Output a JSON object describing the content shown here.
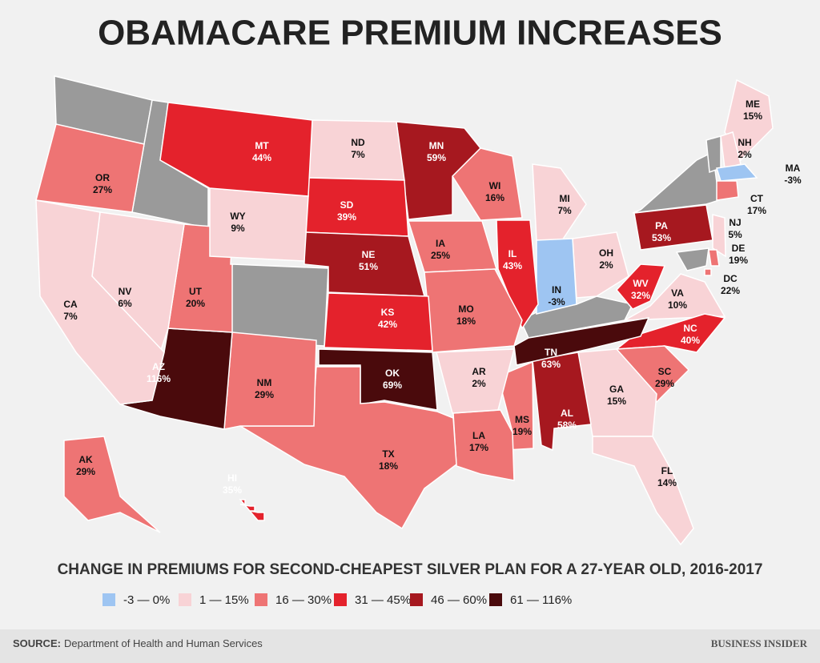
{
  "header": {
    "title": "OBAMACARE PREMIUM INCREASES"
  },
  "states": [
    {
      "abbr": "ME",
      "change": "15%",
      "color": "#f8d3d6"
    },
    {
      "abbr": "NH",
      "change": "2%",
      "color": "#f8d3d6"
    },
    {
      "abbr": "MA",
      "change": "-3%",
      "color": "#9ec5f2"
    },
    {
      "abbr": "CT",
      "change": "17%",
      "color": "#ee7474"
    },
    {
      "abbr": "NJ",
      "change": "5%",
      "color": "#f8d3d6"
    },
    {
      "abbr": "DE",
      "change": "19%",
      "color": "#ee7474"
    },
    {
      "abbr": "DC",
      "change": "22%",
      "color": "#ee7474"
    },
    {
      "abbr": "PA",
      "change": "53%",
      "color": "#a6181f"
    },
    {
      "abbr": "WV",
      "change": "32%",
      "color": "#e4222c"
    },
    {
      "abbr": "VA",
      "change": "10%",
      "color": "#f8d3d6"
    },
    {
      "abbr": "NC",
      "change": "40%",
      "color": "#e4222c"
    },
    {
      "abbr": "SC",
      "change": "29%",
      "color": "#ee7474"
    },
    {
      "abbr": "GA",
      "change": "15%",
      "color": "#f8d3d6"
    },
    {
      "abbr": "FL",
      "change": "14%",
      "color": "#f8d3d6"
    },
    {
      "abbr": "AL",
      "change": "58%",
      "color": "#a6181f"
    },
    {
      "abbr": "TN",
      "change": "63%",
      "color": "#4a0a0c"
    },
    {
      "abbr": "MS",
      "change": "19%",
      "color": "#ee7474"
    },
    {
      "abbr": "LA",
      "change": "17%",
      "color": "#ee7474"
    },
    {
      "abbr": "AR",
      "change": "2%",
      "color": "#f8d3d6"
    },
    {
      "abbr": "OH",
      "change": "2%",
      "color": "#f8d3d6"
    },
    {
      "abbr": "MI",
      "change": "7%",
      "color": "#f8d3d6"
    },
    {
      "abbr": "IN",
      "change": "-3%",
      "color": "#9ec5f2"
    },
    {
      "abbr": "IL",
      "change": "43%",
      "color": "#e4222c"
    },
    {
      "abbr": "WI",
      "change": "16%",
      "color": "#ee7474"
    },
    {
      "abbr": "MN",
      "change": "59%",
      "color": "#a6181f"
    },
    {
      "abbr": "IA",
      "change": "25%",
      "color": "#ee7474"
    },
    {
      "abbr": "MO",
      "change": "18%",
      "color": "#ee7474"
    },
    {
      "abbr": "ND",
      "change": "7%",
      "color": "#f8d3d6"
    },
    {
      "abbr": "SD",
      "change": "39%",
      "color": "#e4222c"
    },
    {
      "abbr": "NE",
      "change": "51%",
      "color": "#a6181f"
    },
    {
      "abbr": "KS",
      "change": "42%",
      "color": "#e4222c"
    },
    {
      "abbr": "OK",
      "change": "69%",
      "color": "#4a0a0c"
    },
    {
      "abbr": "TX",
      "change": "18%",
      "color": "#ee7474"
    },
    {
      "abbr": "NM",
      "change": "29%",
      "color": "#ee7474"
    },
    {
      "abbr": "AZ",
      "change": "116%",
      "color": "#4a0a0c"
    },
    {
      "abbr": "UT",
      "change": "20%",
      "color": "#ee7474"
    },
    {
      "abbr": "WY",
      "change": "9%",
      "color": "#f8d3d6"
    },
    {
      "abbr": "MT",
      "change": "44%",
      "color": "#e4222c"
    },
    {
      "abbr": "OR",
      "change": "27%",
      "color": "#ee7474"
    },
    {
      "abbr": "NV",
      "change": "6%",
      "color": "#f8d3d6"
    },
    {
      "abbr": "CA",
      "change": "7%",
      "color": "#f8d3d6"
    },
    {
      "abbr": "AK",
      "change": "29%",
      "color": "#ee7474"
    },
    {
      "abbr": "HI",
      "change": "35%",
      "color": "#e4222c"
    }
  ],
  "subtitle": "CHANGE IN PREMIUMS FOR SECOND-CHEAPEST SILVER PLAN FOR A 27-YEAR OLD, 2016-2017",
  "legend": [
    {
      "label": "-3 — 0%",
      "color": "#9ec5f2"
    },
    {
      "label": "1 — 15%",
      "color": "#f8d3d6"
    },
    {
      "label": "16 — 30%",
      "color": "#ee7474"
    },
    {
      "label": "31 — 45%",
      "color": "#e4222c"
    },
    {
      "label": "46 — 60%",
      "color": "#a6181f"
    },
    {
      "label": "61 — 116%",
      "color": "#4a0a0c"
    }
  ],
  "footer": {
    "source_label": "SOURCE:",
    "source": "Department of Health and Human Services",
    "brand": "BUSINESS INSIDER"
  }
}
